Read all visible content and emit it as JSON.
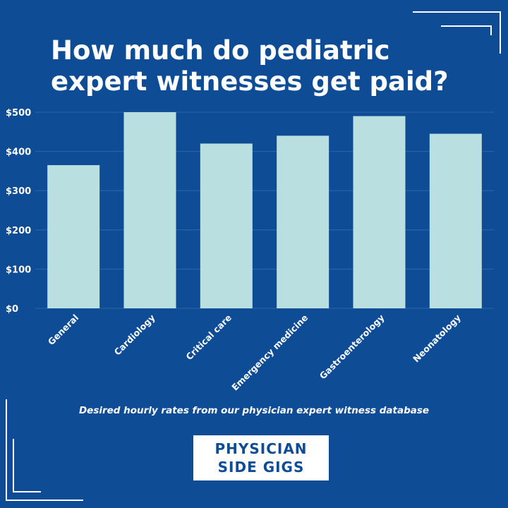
{
  "header": {
    "title_line1": "How much do pediatric",
    "title_line2": "expert witnesses get paid?"
  },
  "chart_data": {
    "type": "bar",
    "categories": [
      "General",
      "Cardiology",
      "Critical care",
      "Emergency medicine",
      "Gastroenterology",
      "Neonatology"
    ],
    "values": [
      365,
      500,
      420,
      440,
      490,
      445
    ],
    "yticks": [
      "$0",
      "$100",
      "$200",
      "$300",
      "$400",
      "$500"
    ],
    "ylim": [
      0,
      500
    ],
    "xlabel": "",
    "ylabel": "",
    "grid": true,
    "bar_color": "#b9dfe0",
    "background_color": "#0e4c96"
  },
  "footer": {
    "caption": "Desired hourly rates from our physician expert witness database",
    "logo_line1": "PHYSICIAN",
    "logo_line2": "SIDE GIGS"
  }
}
